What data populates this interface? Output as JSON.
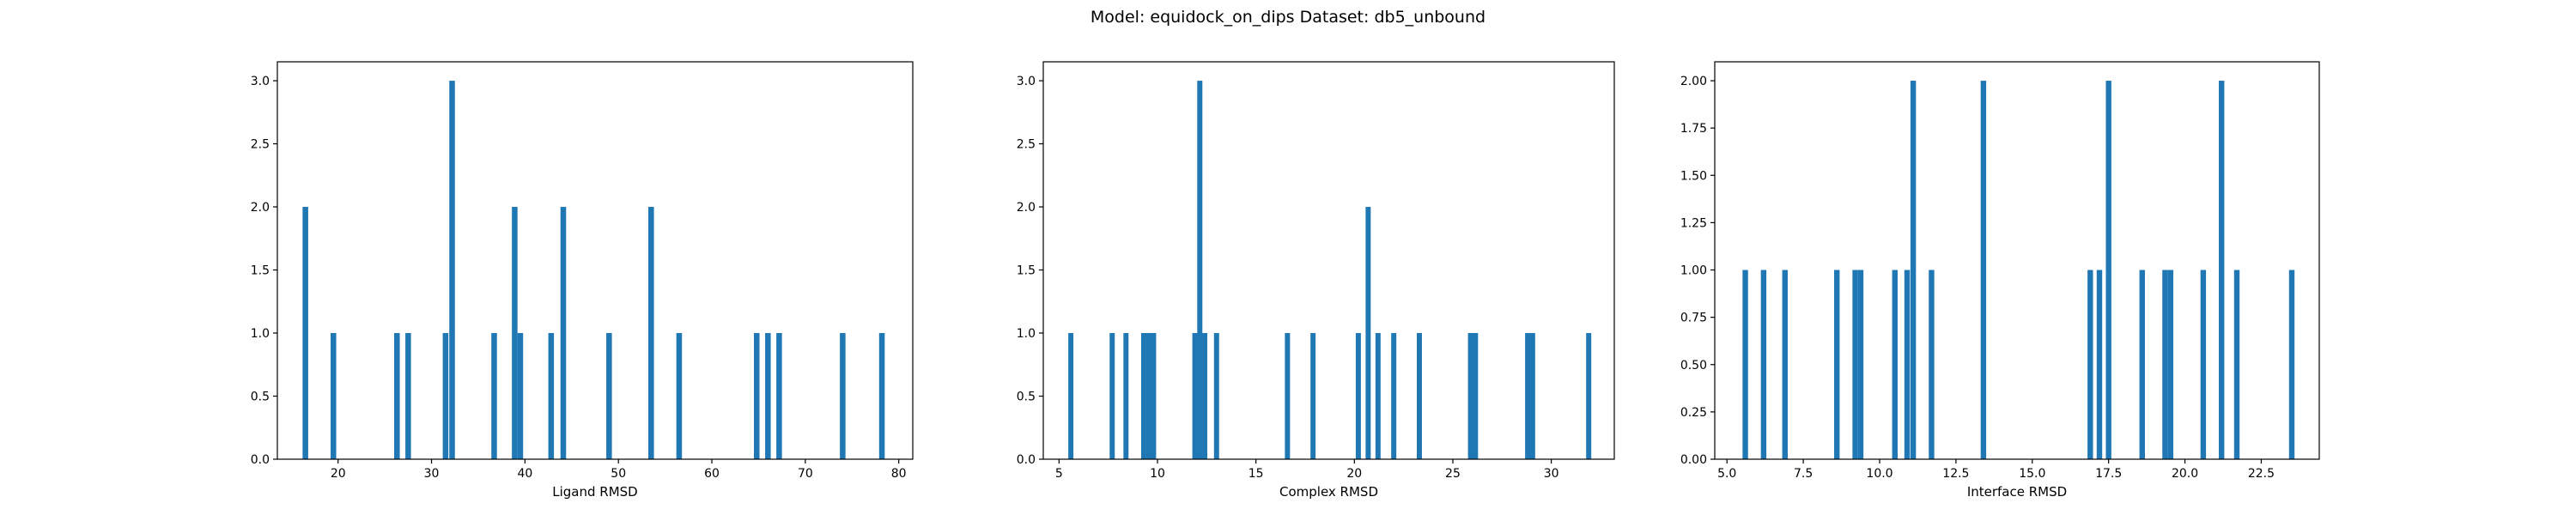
{
  "title": "Model: equidock_on_dips Dataset: db5_unbound",
  "colors": {
    "bar": "#1f77b4",
    "axis": "#000000",
    "background": "#ffffff"
  },
  "chart_data": [
    {
      "type": "bar",
      "subtype": "histogram",
      "xlabel": "Ligand RMSD",
      "ylabel": "",
      "grid": false,
      "xlim": [
        13.5,
        81.5
      ],
      "ylim": [
        0,
        3.15
      ],
      "bin_width": 0.6,
      "xticks": [
        {
          "value": 20,
          "label": "20"
        },
        {
          "value": 30,
          "label": "30"
        },
        {
          "value": 40,
          "label": "40"
        },
        {
          "value": 50,
          "label": "50"
        },
        {
          "value": 60,
          "label": "60"
        },
        {
          "value": 70,
          "label": "70"
        },
        {
          "value": 80,
          "label": "80"
        }
      ],
      "yticks": [
        {
          "value": 0,
          "label": "0.0"
        },
        {
          "value": 0.5,
          "label": "0.5"
        },
        {
          "value": 1,
          "label": "1.0"
        },
        {
          "value": 1.5,
          "label": "1.5"
        },
        {
          "value": 2,
          "label": "2.0"
        },
        {
          "value": 2.5,
          "label": "2.5"
        },
        {
          "value": 3,
          "label": "3.0"
        }
      ],
      "bins": [
        {
          "x": 16.5,
          "count": 2
        },
        {
          "x": 19.5,
          "count": 1
        },
        {
          "x": 26.3,
          "count": 1
        },
        {
          "x": 27.5,
          "count": 1
        },
        {
          "x": 31.5,
          "count": 1
        },
        {
          "x": 32.2,
          "count": 3
        },
        {
          "x": 36.7,
          "count": 1
        },
        {
          "x": 38.9,
          "count": 2
        },
        {
          "x": 39.5,
          "count": 1
        },
        {
          "x": 42.8,
          "count": 1
        },
        {
          "x": 44.1,
          "count": 2
        },
        {
          "x": 49.0,
          "count": 1
        },
        {
          "x": 53.5,
          "count": 2
        },
        {
          "x": 56.5,
          "count": 1
        },
        {
          "x": 64.8,
          "count": 1
        },
        {
          "x": 66.0,
          "count": 1
        },
        {
          "x": 67.2,
          "count": 1
        },
        {
          "x": 74.0,
          "count": 1
        },
        {
          "x": 78.2,
          "count": 1
        }
      ]
    },
    {
      "type": "bar",
      "subtype": "histogram",
      "xlabel": "Complex RMSD",
      "ylabel": "",
      "grid": false,
      "xlim": [
        4.2,
        33.2
      ],
      "ylim": [
        0,
        3.15
      ],
      "bin_width": 0.26,
      "xticks": [
        {
          "value": 5,
          "label": "5"
        },
        {
          "value": 10,
          "label": "10"
        },
        {
          "value": 15,
          "label": "15"
        },
        {
          "value": 20,
          "label": "20"
        },
        {
          "value": 25,
          "label": "25"
        },
        {
          "value": 30,
          "label": "30"
        }
      ],
      "yticks": [
        {
          "value": 0,
          "label": "0.0"
        },
        {
          "value": 0.5,
          "label": "0.5"
        },
        {
          "value": 1,
          "label": "1.0"
        },
        {
          "value": 1.5,
          "label": "1.5"
        },
        {
          "value": 2,
          "label": "2.0"
        },
        {
          "value": 2.5,
          "label": "2.5"
        },
        {
          "value": 3,
          "label": "3.0"
        }
      ],
      "bins": [
        {
          "x": 5.6,
          "count": 1
        },
        {
          "x": 7.7,
          "count": 1
        },
        {
          "x": 8.4,
          "count": 1
        },
        {
          "x": 9.3,
          "count": 1
        },
        {
          "x": 9.55,
          "count": 1
        },
        {
          "x": 9.8,
          "count": 1
        },
        {
          "x": 11.9,
          "count": 1
        },
        {
          "x": 12.15,
          "count": 3
        },
        {
          "x": 12.4,
          "count": 1
        },
        {
          "x": 13.0,
          "count": 1
        },
        {
          "x": 16.6,
          "count": 1
        },
        {
          "x": 17.9,
          "count": 1
        },
        {
          "x": 20.2,
          "count": 1
        },
        {
          "x": 20.7,
          "count": 2
        },
        {
          "x": 21.2,
          "count": 1
        },
        {
          "x": 22.0,
          "count": 1
        },
        {
          "x": 23.3,
          "count": 1
        },
        {
          "x": 25.9,
          "count": 1
        },
        {
          "x": 26.15,
          "count": 1
        },
        {
          "x": 28.8,
          "count": 1
        },
        {
          "x": 29.05,
          "count": 1
        },
        {
          "x": 31.9,
          "count": 1
        }
      ]
    },
    {
      "type": "bar",
      "subtype": "histogram",
      "xlabel": "Interface RMSD",
      "ylabel": "",
      "grid": false,
      "xlim": [
        4.6,
        24.4
      ],
      "ylim": [
        0,
        2.1
      ],
      "bin_width": 0.18,
      "xticks": [
        {
          "value": 5.0,
          "label": "5.0"
        },
        {
          "value": 7.5,
          "label": "7.5"
        },
        {
          "value": 10.0,
          "label": "10.0"
        },
        {
          "value": 12.5,
          "label": "12.5"
        },
        {
          "value": 15.0,
          "label": "15.0"
        },
        {
          "value": 17.5,
          "label": "17.5"
        },
        {
          "value": 20.0,
          "label": "20.0"
        },
        {
          "value": 22.5,
          "label": "22.5"
        }
      ],
      "yticks": [
        {
          "value": 0,
          "label": "0.00"
        },
        {
          "value": 0.25,
          "label": "0.25"
        },
        {
          "value": 0.5,
          "label": "0.50"
        },
        {
          "value": 0.75,
          "label": "0.75"
        },
        {
          "value": 1.0,
          "label": "1.00"
        },
        {
          "value": 1.25,
          "label": "1.25"
        },
        {
          "value": 1.5,
          "label": "1.50"
        },
        {
          "value": 1.75,
          "label": "1.75"
        },
        {
          "value": 2.0,
          "label": "2.00"
        }
      ],
      "bins": [
        {
          "x": 5.6,
          "count": 1
        },
        {
          "x": 6.2,
          "count": 1
        },
        {
          "x": 6.9,
          "count": 1
        },
        {
          "x": 8.6,
          "count": 1
        },
        {
          "x": 9.2,
          "count": 1
        },
        {
          "x": 9.38,
          "count": 1
        },
        {
          "x": 10.5,
          "count": 1
        },
        {
          "x": 10.9,
          "count": 1
        },
        {
          "x": 11.1,
          "count": 2
        },
        {
          "x": 11.7,
          "count": 1
        },
        {
          "x": 13.4,
          "count": 2
        },
        {
          "x": 16.9,
          "count": 1
        },
        {
          "x": 17.2,
          "count": 1
        },
        {
          "x": 17.5,
          "count": 2
        },
        {
          "x": 18.6,
          "count": 1
        },
        {
          "x": 19.35,
          "count": 1
        },
        {
          "x": 19.53,
          "count": 1
        },
        {
          "x": 20.6,
          "count": 1
        },
        {
          "x": 21.2,
          "count": 2
        },
        {
          "x": 21.7,
          "count": 1
        },
        {
          "x": 23.5,
          "count": 1
        }
      ]
    }
  ]
}
